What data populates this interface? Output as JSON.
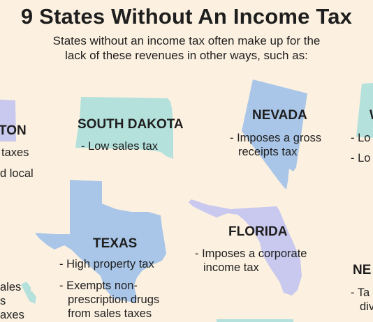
{
  "header": {
    "title": "9 States Without An Income Tax",
    "subtitle_line1": "States without an income tax often make up for the",
    "subtitle_line2": "lack of these revenues in other ways, such as:"
  },
  "states": {
    "washington": {
      "name_fragment": "TON",
      "line1": "taxes",
      "line2": "d local"
    },
    "south_dakota": {
      "name": "SOUTH DAKOTA",
      "line1": "- Low sales tax"
    },
    "nevada": {
      "name": "NEVADA",
      "line1": "- Imposes a gross",
      "line2": "receipts tax"
    },
    "wyoming": {
      "name_fragment": "W",
      "line1": "- Lo",
      "line2": "- Lo"
    },
    "texas": {
      "name": "TEXAS",
      "line1": "- High property tax",
      "line2": "- Exempts non-",
      "line3": "prescription drugs",
      "line4": "from sales taxes"
    },
    "florida": {
      "name": "FLORIDA",
      "line1": "- Imposes a corporate",
      "line2": "income tax"
    },
    "alaska": {
      "line1": "ales",
      "line2": "s",
      "line3": "axes"
    },
    "new_hampshire": {
      "name_fragment": "NE",
      "line1": "- Ta",
      "line2": "div"
    }
  },
  "colors": {
    "background": "#fcf1e1",
    "blue_state": "#a9c6e8",
    "mint_state": "#b4e1dc",
    "lavender_state": "#c9c8ee",
    "text": "#1e1e1e"
  }
}
